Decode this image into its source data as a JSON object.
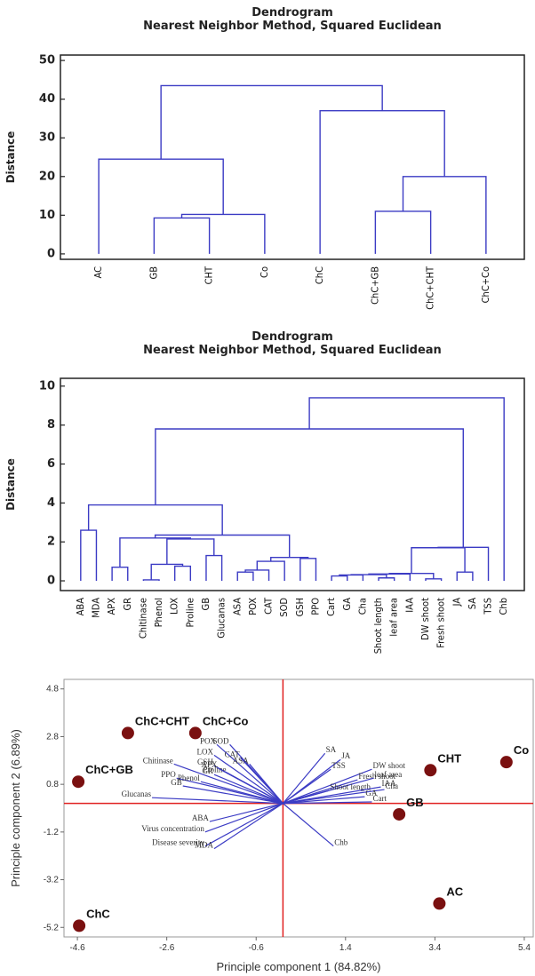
{
  "chart_data": [
    {
      "type": "dendrogram",
      "title": "Dendrogram",
      "subtitle": "Nearest Neighbor Method, Squared Euclidean",
      "ylabel": "Distance",
      "ylim": [
        -1.4,
        51.4
      ],
      "yticks": [
        0,
        10,
        20,
        30,
        40,
        50
      ],
      "color": "#3b3bc4",
      "tree": {
        "height": 43.5,
        "children": [
          {
            "height": 24.5,
            "children": [
              "AC",
              {
                "height": 10.2,
                "children": [
                  {
                    "height": 9.3,
                    "children": [
                      "GB",
                      "CHT"
                    ]
                  },
                  "Co"
                ]
              }
            ]
          },
          {
            "height": 37,
            "children": [
              "ChC",
              {
                "height": 20,
                "children": [
                  {
                    "height": 11,
                    "children": [
                      "ChC+GB",
                      "ChC+CHT"
                    ]
                  },
                  "ChC+Co"
                ]
              }
            ]
          }
        ]
      }
    },
    {
      "type": "dendrogram",
      "title": "Dendrogram",
      "subtitle": "Nearest Neighbor Method, Squared Euclidean",
      "ylabel": "Distance",
      "ylim": [
        -0.5,
        10.4
      ],
      "yticks": [
        0,
        2,
        4,
        6,
        8,
        10
      ],
      "color": "#3b3bc4",
      "tree": {
        "height": 9.4,
        "children": [
          {
            "height": 7.8,
            "children": [
              {
                "height": 3.9,
                "children": [
                  {
                    "height": 2.6,
                    "children": [
                      "ABA",
                      "MDA"
                    ]
                  },
                  {
                    "height": 2.35,
                    "children": [
                      {
                        "height": 2.2,
                        "children": [
                          {
                            "height": 0.7,
                            "children": [
                              "APX",
                              "GR"
                            ]
                          },
                          {
                            "height": 2.15,
                            "children": [
                              {
                                "height": 0.85,
                                "children": [
                                  {
                                    "height": 0.05,
                                    "children": [
                                      "Chitinase",
                                      "Phenol"
                                    ]
                                  },
                                  {
                                    "height": 0.75,
                                    "children": [
                                      "LOX",
                                      "Proline"
                                    ]
                                  }
                                ]
                              },
                              {
                                "height": 1.3,
                                "children": [
                                  "GB",
                                  "Glucanas"
                                ]
                              }
                            ]
                          }
                        ]
                      },
                      {
                        "height": 1.2,
                        "children": [
                          {
                            "height": 1.0,
                            "children": [
                              {
                                "height": 0.55,
                                "children": [
                                  {
                                    "height": 0.45,
                                    "children": [
                                      "ASA",
                                      "POX"
                                    ]
                                  },
                                  "CAT"
                                ]
                              },
                              "SOD"
                            ]
                          },
                          {
                            "height": 1.15,
                            "children": [
                              "GSH",
                              "PPO"
                            ]
                          }
                        ]
                      }
                    ]
                  }
                ]
              },
              {
                "height": 1.72,
                "children": [
                  {
                    "height": 1.7,
                    "children": [
                      {
                        "height": 0.38,
                        "children": [
                          {
                            "height": 0.35,
                            "children": [
                              {
                                "height": 0.32,
                                "children": [
                                  {
                                    "height": 0.3,
                                    "children": [
                                      {
                                        "height": 0.25,
                                        "children": [
                                          "Cart",
                                          "GA"
                                        ]
                                      },
                                      "Cha"
                                    ]
                                  },
                                  {
                                    "height": 0.15,
                                    "children": [
                                      "Shoot length",
                                      "leaf area"
                                    ]
                                  }
                                ]
                              },
                              "IAA"
                            ]
                          },
                          {
                            "height": 0.1,
                            "children": [
                              "DW shoot",
                              "Fresh shoot"
                            ]
                          }
                        ]
                      },
                      {
                        "height": 0.45,
                        "children": [
                          "JA",
                          "SA"
                        ]
                      }
                    ]
                  },
                  "TSS"
                ]
              }
            ]
          },
          "Chb"
        ]
      }
    },
    {
      "type": "biplot",
      "xlabel": "Principle component 1 (84.82%)",
      "ylabel": "Principle component 2 (6.89%)",
      "xlim": [
        -4.9,
        5.6
      ],
      "ylim": [
        -5.6,
        5.2
      ],
      "xticks": [
        -4.6,
        -2.6,
        -0.6,
        1.4,
        3.4,
        5.4
      ],
      "yticks": [
        -5.2,
        -3.2,
        -1.2,
        0.8,
        2.8,
        4.8
      ],
      "zero_lines": true,
      "zero_line_color": "#e02020",
      "points": {
        "color": "#7a1010",
        "labels": [
          "ChC+CHT",
          "ChC+Co",
          "ChC+GB",
          "ChC",
          "CHT",
          "Co",
          "GB",
          "AC"
        ],
        "x": [
          -3.47,
          -1.96,
          -4.58,
          -4.56,
          3.3,
          5.0,
          2.6,
          3.5
        ],
        "y": [
          2.95,
          2.95,
          0.91,
          -5.13,
          1.39,
          1.73,
          -0.46,
          -4.2
        ]
      },
      "loadings": {
        "color": "#3b3bc4",
        "labels": [
          "SA",
          "JA",
          "TSS",
          "DW shoot",
          "Fresh shoot",
          "leaf area",
          "Shoot length",
          "IAA",
          "Cha",
          "GA",
          "Cart",
          "Chb",
          "POX",
          "SOD",
          "LOX",
          "CAT",
          "GSH",
          "ASA",
          "Chitinase",
          "Proline",
          "APX",
          "PPO",
          "Phenol",
          "GR",
          "GB",
          "Glucanas",
          "ABA",
          "Virus concentration",
          "Disease severity",
          "MDA"
        ],
        "x": [
          0.94,
          1.29,
          1.07,
          1.99,
          1.67,
          2.03,
          1.03,
          2.19,
          2.27,
          1.83,
          1.99,
          1.13,
          -1.48,
          -1.19,
          -1.54,
          -0.95,
          -1.54,
          -0.75,
          -2.44,
          -1.25,
          -1.45,
          -2.38,
          -1.84,
          -1.54,
          -2.24,
          -2.93,
          -1.64,
          -1.74,
          -1.74,
          -1.54
        ],
        "y": [
          2.1,
          1.84,
          1.43,
          1.43,
          0.99,
          1.06,
          0.54,
          0.69,
          0.58,
          0.28,
          0.06,
          -1.79,
          2.47,
          2.47,
          2.02,
          1.91,
          1.58,
          1.65,
          1.65,
          1.28,
          1.47,
          1.06,
          0.91,
          1.21,
          0.73,
          0.24,
          -0.76,
          -1.2,
          -1.79,
          -1.9
        ]
      }
    }
  ]
}
